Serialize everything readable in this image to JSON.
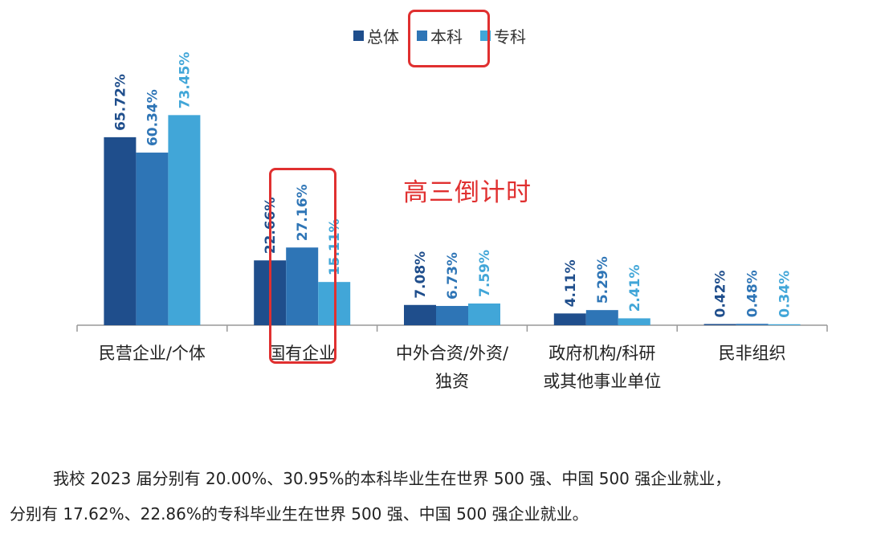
{
  "chart_data": {
    "type": "bar",
    "categories": [
      [
        "民营企业/个体"
      ],
      [
        "国有企业"
      ],
      [
        "中外合资/外资/",
        "独资"
      ],
      [
        "政府机构/科研",
        "或其他事业单位"
      ],
      [
        "民非组织"
      ]
    ],
    "series": [
      {
        "name": "总体",
        "color": "#1f4e8c",
        "values": [
          65.72,
          22.66,
          7.08,
          4.11,
          0.42
        ],
        "labels": [
          "65.72%",
          "22.66%",
          "7.08%",
          "4.11%",
          "0.42%"
        ]
      },
      {
        "name": "本科",
        "color": "#2e75b6",
        "values": [
          60.34,
          27.16,
          6.73,
          5.29,
          0.48
        ],
        "labels": [
          "60.34%",
          "27.16%",
          "6.73%",
          "5.29%",
          "0.48%"
        ]
      },
      {
        "name": "专科",
        "color": "#41a6d8",
        "values": [
          73.45,
          15.11,
          7.59,
          2.41,
          0.34
        ],
        "labels": [
          "73.45%",
          "15.11%",
          "7.59%",
          "2.41%",
          "0.34%"
        ]
      }
    ],
    "ylim": [
      0,
      80
    ],
    "legend_position": "top-center",
    "grid": false
  },
  "overlay_text": "高三倒计时",
  "footnote": {
    "line1": "我校 2023 届分别有 20.00%、30.95%的本科毕业生在世界 500 强、中国 500 强企业就业，",
    "line2": "分别有 17.62%、22.86%的专科毕业生在世界 500 强、中国 500 强企业就业。"
  }
}
